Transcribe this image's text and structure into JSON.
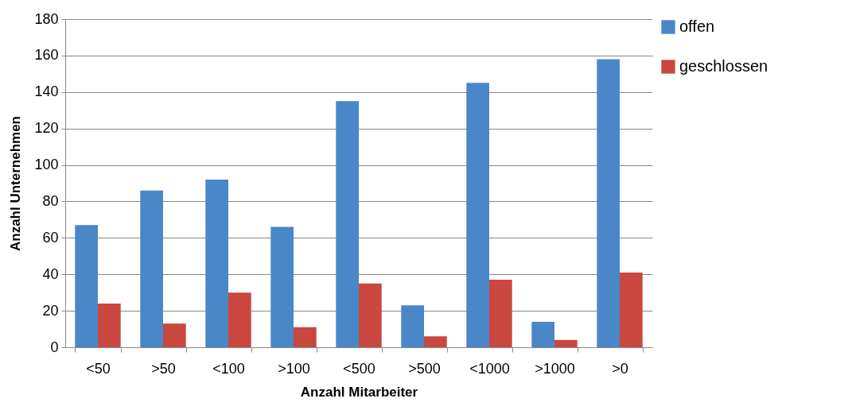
{
  "chart_data": {
    "type": "bar",
    "xlabel": "Anzahl Mitarbeiter",
    "ylabel": "Anzahl Unternehmen",
    "categories": [
      "<50",
      ">50",
      "<100",
      ">100",
      "<500",
      ">500",
      "<1000",
      ">1000",
      ">0"
    ],
    "series": [
      {
        "name": "offen",
        "color": "#4a87c8",
        "values": [
          67,
          86,
          92,
          66,
          135,
          23,
          145,
          14,
          158
        ]
      },
      {
        "name": "geschlossen",
        "color": "#c9473f",
        "values": [
          24,
          13,
          30,
          11,
          35,
          6,
          37,
          4,
          41
        ]
      }
    ],
    "ylim": [
      0,
      180
    ],
    "yticks": [
      0,
      20,
      40,
      60,
      80,
      100,
      120,
      140,
      160,
      180
    ],
    "grid": "y",
    "legend": "right"
  }
}
